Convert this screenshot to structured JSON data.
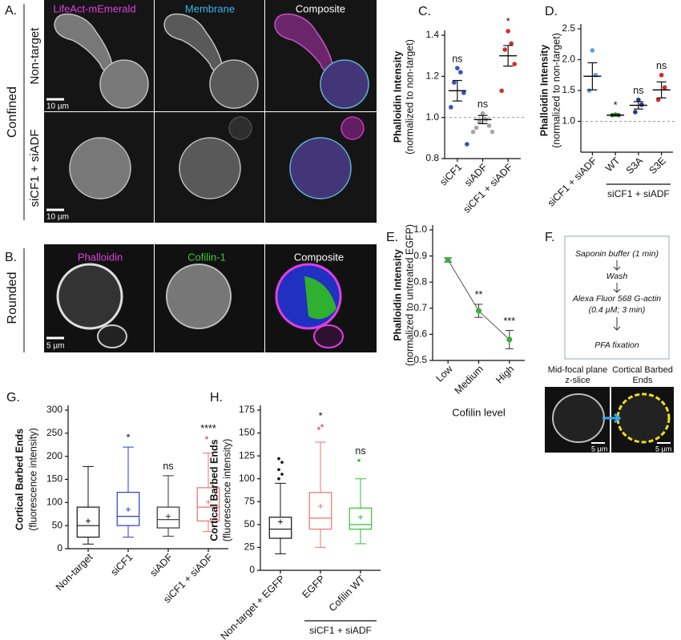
{
  "panels": {
    "A": {
      "label": "A.",
      "condition": "Confined",
      "columns": [
        "LifeAct-mEmerald",
        "Membrane",
        "Composite"
      ],
      "rows": [
        "Non-target",
        "siCF1 + siADF"
      ],
      "scale_bars": [
        "10 µm",
        "10 µm"
      ]
    },
    "B": {
      "label": "B.",
      "condition": "Rounded",
      "columns": [
        "Phalloidin",
        "Cofilin-1",
        "Composite"
      ],
      "scale_bar": "5 µm"
    },
    "F": {
      "label": "F.",
      "steps": [
        "Saponin buffer (1 min)",
        "Wash",
        "Alexa Fluor 568 G-actin",
        "(0.4 µM; 3 min)",
        "PFA fixation"
      ],
      "image_labels": [
        [
          "Mid-focal plane",
          "z-slice"
        ],
        [
          "Cortical Barbed",
          "Ends"
        ]
      ],
      "scale_bars": [
        "5 µm",
        "5 µm"
      ]
    }
  },
  "chart_data": [
    {
      "type": "dot",
      "panel": "C.",
      "ylabel": [
        "Phalloidin Intensity",
        "(normalized to non-target)"
      ],
      "categories": [
        "siCF1",
        "siADF",
        "siCF1 + siADF"
      ],
      "colors": [
        "#3a4fc4",
        "#a6a6a6",
        "#d62d2d"
      ],
      "points": [
        [
          1.24,
          1.22,
          1.17,
          1.12,
          1.05,
          0.87
        ],
        [
          1.02,
          0.99,
          0.98,
          0.96,
          0.95,
          0.93,
          0.93
        ],
        [
          1.42,
          1.36,
          1.33,
          1.26,
          1.13
        ]
      ],
      "means": [
        1.13,
        0.99,
        1.3
      ],
      "errors": [
        0.05,
        0.02,
        0.05
      ],
      "annotations": [
        "ns",
        "ns",
        "*"
      ],
      "reference_line": 1,
      "ylim": [
        0.8,
        1.4
      ],
      "yticks": [
        0.8,
        {
          "value": 1,
          "label": "1.0"
        },
        1.2,
        1.4
      ]
    },
    {
      "type": "dot",
      "panel": "D.",
      "ylabel": [
        "Phalloidin Intensity",
        "(normalized to non-target)"
      ],
      "categories": [
        "siCF1 + siADF",
        "WT",
        "S3A",
        "S3E"
      ],
      "group_label": "siCF1 + siADF",
      "colors": [
        "#5aa0dc",
        "#2ca02c",
        "#1f3a93",
        "#d62728"
      ],
      "points": [
        [
          2.15,
          1.75,
          1.5
        ],
        [
          1.11,
          1.1,
          1.1
        ],
        [
          1.35,
          1.27,
          1.15
        ],
        [
          1.75,
          1.55,
          1.35
        ]
      ],
      "means": [
        1.73,
        1.1,
        1.26,
        1.51
      ],
      "errors": [
        0.22,
        0.01,
        0.06,
        0.13
      ],
      "annotations": [
        null,
        "*",
        "ns",
        "ns"
      ],
      "reference_line": 1,
      "ylim": [
        0.5,
        2.5
      ],
      "yticks": [
        {
          "value": 1,
          "label": "1.0"
        },
        1.5,
        {
          "value": 2,
          "label": "2.0"
        },
        2.5
      ]
    },
    {
      "type": "line",
      "panel": "E.",
      "ylabel": [
        "Phalloidin Intensity",
        "(normalized to untreated EGFP)"
      ],
      "xlabel": "Cofilin level",
      "categories": [
        "Low",
        "Medium",
        "High"
      ],
      "values": [
        0.885,
        0.69,
        0.58
      ],
      "errors": [
        0.008,
        0.025,
        0.035
      ],
      "color": "#33b233",
      "annotations": [
        null,
        "**",
        "***"
      ],
      "ylim": [
        0.5,
        1
      ],
      "yticks": [
        0.5,
        0.6,
        0.7,
        0.8,
        0.9,
        {
          "value": 1,
          "label": "1.0"
        }
      ]
    },
    {
      "type": "box",
      "panel": "G.",
      "ylabel": [
        "Cortical Barbed Ends",
        "(fluorescence intensity)"
      ],
      "categories": [
        "Non-target",
        "siCF1",
        "siADF",
        "siCF1 + siADF"
      ],
      "colors": [
        "#111111",
        "#2b3bd1",
        "#333333",
        "#f07070"
      ],
      "boxes": [
        [
          10,
          25,
          50,
          90,
          178
        ],
        [
          25,
          50,
          70,
          122,
          220
        ],
        [
          27,
          45,
          63,
          90,
          158
        ],
        [
          37,
          60,
          90,
          132,
          207
        ]
      ],
      "means": [
        60,
        85,
        70,
        101
      ],
      "outliers": [
        [],
        [],
        [],
        [
          240
        ]
      ],
      "annotations": [
        null,
        "*",
        "ns",
        "****"
      ],
      "ylim": [
        0,
        300
      ],
      "yticks": [
        0,
        50,
        100,
        150,
        200,
        250,
        300
      ]
    },
    {
      "type": "box",
      "panel": "H.",
      "ylabel": [
        "Cortical Barbed Ends",
        "(fluorescence intensity)"
      ],
      "categories": [
        "Non-target + EGFP",
        "EGFP",
        "Cofilin WT"
      ],
      "group_label": "siCF1 + siADF",
      "colors": [
        "#111111",
        "#f07070",
        "#33c233"
      ],
      "boxes": [
        [
          18,
          35,
          45,
          58,
          95
        ],
        [
          25,
          45,
          57,
          85,
          140
        ],
        [
          29,
          45,
          50,
          68,
          100
        ]
      ],
      "means": [
        53,
        70,
        58
      ],
      "outliers": [
        [
          100,
          105,
          110,
          118,
          122
        ],
        [
          155,
          158
        ],
        [
          120
        ]
      ],
      "annotations": [
        null,
        "*",
        "ns"
      ],
      "ylim": [
        0,
        175
      ],
      "yticks": [
        0,
        25,
        50,
        75,
        100,
        125,
        150,
        175
      ]
    }
  ]
}
